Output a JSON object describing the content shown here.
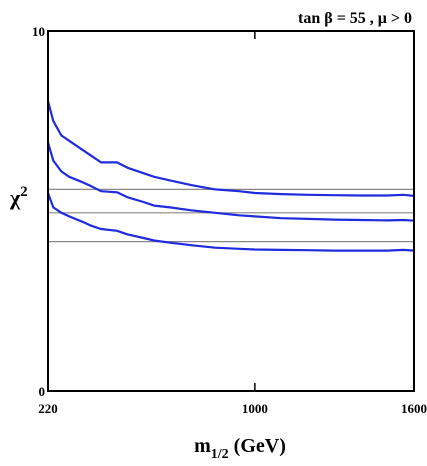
{
  "chart_data": {
    "type": "line",
    "title": "tan β = 55 ,  μ > 0",
    "xlabel_main": "m",
    "xlabel_sub": "1/2",
    "xlabel_unit": " (GeV)",
    "ylabel_main": "χ",
    "ylabel_sup": "2",
    "xlim": [
      220,
      1600
    ],
    "ylim": [
      0,
      10
    ],
    "x_tick_labels": [
      {
        "value": 220,
        "label": "220"
      },
      {
        "value": 1000,
        "label": "1000"
      },
      {
        "value": 1600,
        "label": "1600"
      }
    ],
    "y_tick_labels": [
      {
        "value": 0,
        "label": "0"
      },
      {
        "value": 10,
        "label": "10"
      }
    ],
    "reference_lines": [
      5.6,
      4.95,
      4.15
    ],
    "line_color": "#1f2bdd",
    "reference_color": "#888888",
    "series": [
      {
        "x": [
          220,
          240,
          270,
          300,
          350,
          380,
          420,
          480,
          520,
          580,
          620,
          680,
          760,
          850,
          940,
          1000,
          1100,
          1200,
          1300,
          1400,
          1500,
          1560,
          1600
        ],
        "y": [
          8.05,
          7.5,
          7.1,
          6.95,
          6.7,
          6.55,
          6.35,
          6.35,
          6.2,
          6.05,
          5.95,
          5.85,
          5.72,
          5.6,
          5.55,
          5.5,
          5.47,
          5.45,
          5.44,
          5.43,
          5.43,
          5.45,
          5.42
        ]
      },
      {
        "x": [
          220,
          240,
          270,
          300,
          350,
          380,
          420,
          480,
          520,
          580,
          620,
          680,
          760,
          850,
          940,
          1000,
          1100,
          1200,
          1300,
          1400,
          1500,
          1560,
          1600
        ],
        "y": [
          6.9,
          6.4,
          6.1,
          5.95,
          5.8,
          5.7,
          5.55,
          5.52,
          5.38,
          5.25,
          5.15,
          5.1,
          5.02,
          4.95,
          4.88,
          4.85,
          4.8,
          4.78,
          4.76,
          4.75,
          4.74,
          4.75,
          4.73
        ]
      },
      {
        "x": [
          220,
          240,
          270,
          300,
          350,
          380,
          420,
          480,
          520,
          580,
          620,
          680,
          760,
          850,
          940,
          1000,
          1100,
          1200,
          1300,
          1400,
          1500,
          1560,
          1600
        ],
        "y": [
          5.5,
          5.1,
          4.95,
          4.85,
          4.7,
          4.6,
          4.5,
          4.45,
          4.35,
          4.25,
          4.18,
          4.12,
          4.05,
          3.98,
          3.95,
          3.93,
          3.92,
          3.91,
          3.9,
          3.9,
          3.9,
          3.92,
          3.9
        ]
      }
    ]
  }
}
